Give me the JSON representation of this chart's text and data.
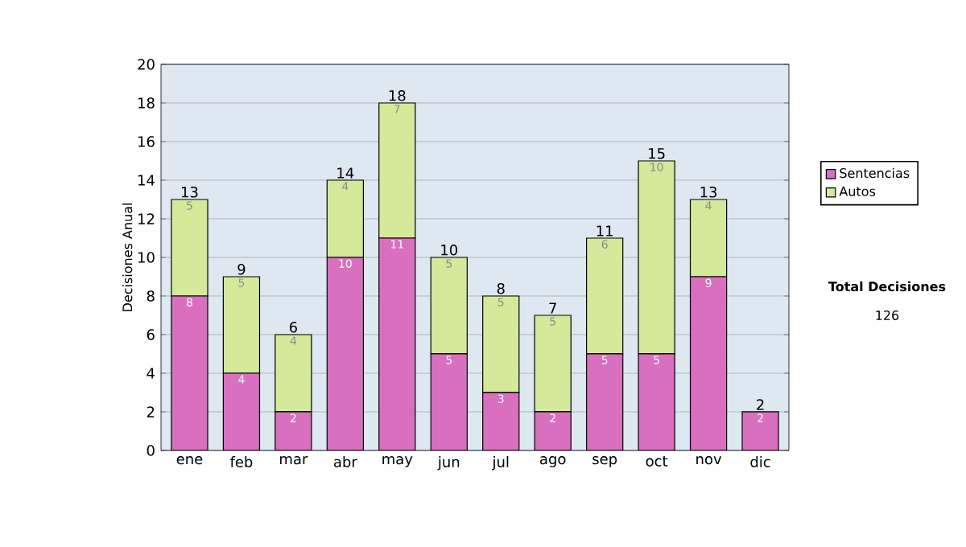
{
  "chart_data": {
    "type": "bar",
    "stacked": true,
    "ylabel": "Decisiones Anual",
    "categories": [
      "ene",
      "feb",
      "mar",
      "abr",
      "may",
      "jun",
      "jul",
      "ago",
      "sep",
      "oct",
      "nov",
      "dic"
    ],
    "series": [
      {
        "name": "Sentencias",
        "color": "#d96fbf",
        "values": [
          8,
          4,
          2,
          10,
          11,
          5,
          3,
          2,
          5,
          5,
          9,
          2
        ],
        "value_labels": [
          "8",
          "4",
          "2",
          "10",
          "11",
          "5",
          "3",
          "2",
          "5",
          "5",
          "9",
          "2"
        ]
      },
      {
        "name": "Autos",
        "color": "#d4e99a",
        "values": [
          5,
          5,
          4,
          4,
          7,
          5,
          5,
          5,
          6,
          10,
          4,
          null
        ],
        "value_labels": [
          "5",
          "5",
          "4",
          "4",
          "7",
          "5",
          "5",
          "5",
          "6",
          "10",
          "4",
          null
        ]
      }
    ],
    "totals": [
      "13",
      "9",
      "6",
      "14",
      "18",
      "10",
      "8",
      "7",
      "11",
      "15",
      "13",
      "2"
    ],
    "ylim": [
      0,
      20
    ],
    "yticks": [
      0,
      2,
      4,
      6,
      8,
      10,
      12,
      14,
      16,
      18,
      20
    ],
    "grid": "y",
    "legend": "right",
    "annotations": [
      "Total Decisiones",
      "126"
    ]
  }
}
